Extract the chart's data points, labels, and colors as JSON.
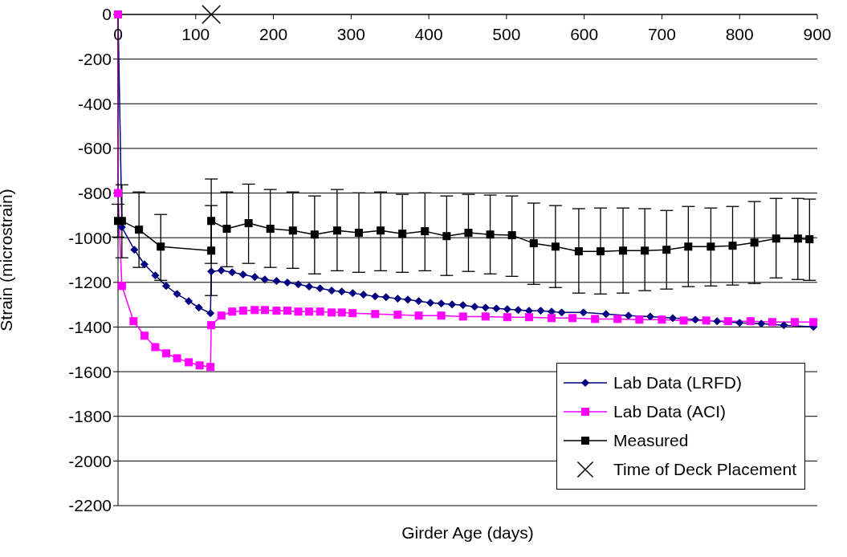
{
  "chart_data": {
    "type": "line",
    "xlabel": "Girder Age (days)",
    "ylabel": "Strain (microstrain)",
    "xlim": [
      0,
      900
    ],
    "xticks": [
      0,
      100,
      200,
      300,
      400,
      500,
      600,
      700,
      800,
      900
    ],
    "ylim": [
      -2200,
      0
    ],
    "yticks": [
      0,
      -200,
      -400,
      -600,
      -800,
      -1000,
      -1200,
      -1400,
      -1600,
      -1800,
      -2000,
      -2200
    ],
    "grid": "y",
    "legend": "bottom right",
    "series": [
      {
        "name": "Lab Data (LRFD)",
        "color": "#000080",
        "marker": "diamond",
        "x": [
          0,
          5,
          21,
          34,
          48,
          62,
          76,
          91,
          104,
          119,
          120,
          133,
          147,
          161,
          176,
          189,
          204,
          218,
          232,
          246,
          260,
          275,
          288,
          302,
          316,
          331,
          345,
          360,
          373,
          387,
          402,
          416,
          430,
          444,
          459,
          473,
          487,
          501,
          515,
          529,
          544,
          558,
          571,
          599,
          628,
          657,
          685,
          714,
          743,
          771,
          800,
          828,
          857,
          895
        ],
        "values": [
          0,
          -953,
          -1054,
          -1119,
          -1169,
          -1216,
          -1252,
          -1284,
          -1313,
          -1338,
          -1151,
          -1147,
          -1155,
          -1165,
          -1176,
          -1187,
          -1194,
          -1201,
          -1209,
          -1219,
          -1227,
          -1237,
          -1241,
          -1248,
          -1255,
          -1263,
          -1266,
          -1273,
          -1277,
          -1284,
          -1291,
          -1295,
          -1299,
          -1302,
          -1309,
          -1313,
          -1317,
          -1320,
          -1324,
          -1327,
          -1327,
          -1331,
          -1335,
          -1335,
          -1342,
          -1349,
          -1353,
          -1360,
          -1367,
          -1374,
          -1381,
          -1385,
          -1392,
          -1399
        ]
      },
      {
        "name": "Lab Data (ACI)",
        "color": "#ff00ff",
        "marker": "square",
        "x": [
          0,
          0,
          5,
          20,
          34,
          48,
          62,
          76,
          91,
          105,
          119,
          120,
          133,
          147,
          161,
          176,
          189,
          204,
          218,
          232,
          246,
          260,
          275,
          288,
          302,
          331,
          360,
          387,
          416,
          444,
          473,
          501,
          529,
          558,
          585,
          614,
          643,
          671,
          700,
          728,
          757,
          785,
          814,
          842,
          871,
          895
        ],
        "values": [
          0,
          -800,
          -1216,
          -1374,
          -1439,
          -1490,
          -1518,
          -1540,
          -1558,
          -1572,
          -1579,
          -1392,
          -1349,
          -1331,
          -1327,
          -1324,
          -1324,
          -1327,
          -1327,
          -1331,
          -1331,
          -1331,
          -1335,
          -1335,
          -1338,
          -1342,
          -1345,
          -1349,
          -1349,
          -1353,
          -1353,
          -1356,
          -1356,
          -1360,
          -1360,
          -1364,
          -1364,
          -1367,
          -1367,
          -1371,
          -1371,
          -1374,
          -1374,
          -1378,
          -1378,
          -1378
        ]
      },
      {
        "name": "Measured",
        "color": "#000000",
        "marker": "square",
        "x": [
          0,
          5,
          27,
          55,
          120,
          120,
          140,
          168,
          196,
          225,
          253,
          282,
          310,
          338,
          366,
          395,
          423,
          451,
          479,
          507,
          535,
          563,
          593,
          621,
          650,
          678,
          706,
          734,
          763,
          791,
          819,
          847,
          875,
          890
        ],
        "values": [
          -925,
          -925,
          -964,
          -1040,
          -1058,
          -925,
          -960,
          -935,
          -960,
          -968,
          -986,
          -968,
          -978,
          -968,
          -982,
          -971,
          -993,
          -978,
          -986,
          -989,
          -1025,
          -1040,
          -1061,
          -1061,
          -1058,
          -1058,
          -1054,
          -1040,
          -1040,
          -1036,
          -1022,
          -1004,
          -1004,
          -1007
        ],
        "errors": [
          [
            -997,
            -850
          ],
          [
            -1090,
            -763
          ],
          [
            -1133,
            -795
          ],
          [
            -1191,
            -896
          ],
          [
            -1259,
            -856
          ],
          [
            -1115,
            -737
          ],
          [
            -1130,
            -795
          ],
          [
            -1115,
            -760
          ],
          [
            -1133,
            -784
          ],
          [
            -1137,
            -795
          ],
          [
            -1162,
            -813
          ],
          [
            -1148,
            -784
          ],
          [
            -1155,
            -799
          ],
          [
            -1148,
            -795
          ],
          [
            -1155,
            -806
          ],
          [
            -1148,
            -799
          ],
          [
            -1169,
            -813
          ],
          [
            -1151,
            -806
          ],
          [
            -1162,
            -809
          ],
          [
            -1173,
            -813
          ],
          [
            -1209,
            -845
          ],
          [
            -1223,
            -856
          ],
          [
            -1248,
            -870
          ],
          [
            -1252,
            -867
          ],
          [
            -1248,
            -867
          ],
          [
            -1237,
            -870
          ],
          [
            -1230,
            -878
          ],
          [
            -1219,
            -860
          ],
          [
            -1216,
            -867
          ],
          [
            -1212,
            -860
          ],
          [
            -1205,
            -838
          ],
          [
            -1180,
            -824
          ],
          [
            -1187,
            -824
          ],
          [
            -1191,
            -827
          ]
        ]
      },
      {
        "name": "Time of Deck Placement",
        "type": "scatter",
        "color": "#000000",
        "marker": "cross",
        "x": [
          120
        ],
        "values": [
          0
        ]
      }
    ]
  }
}
